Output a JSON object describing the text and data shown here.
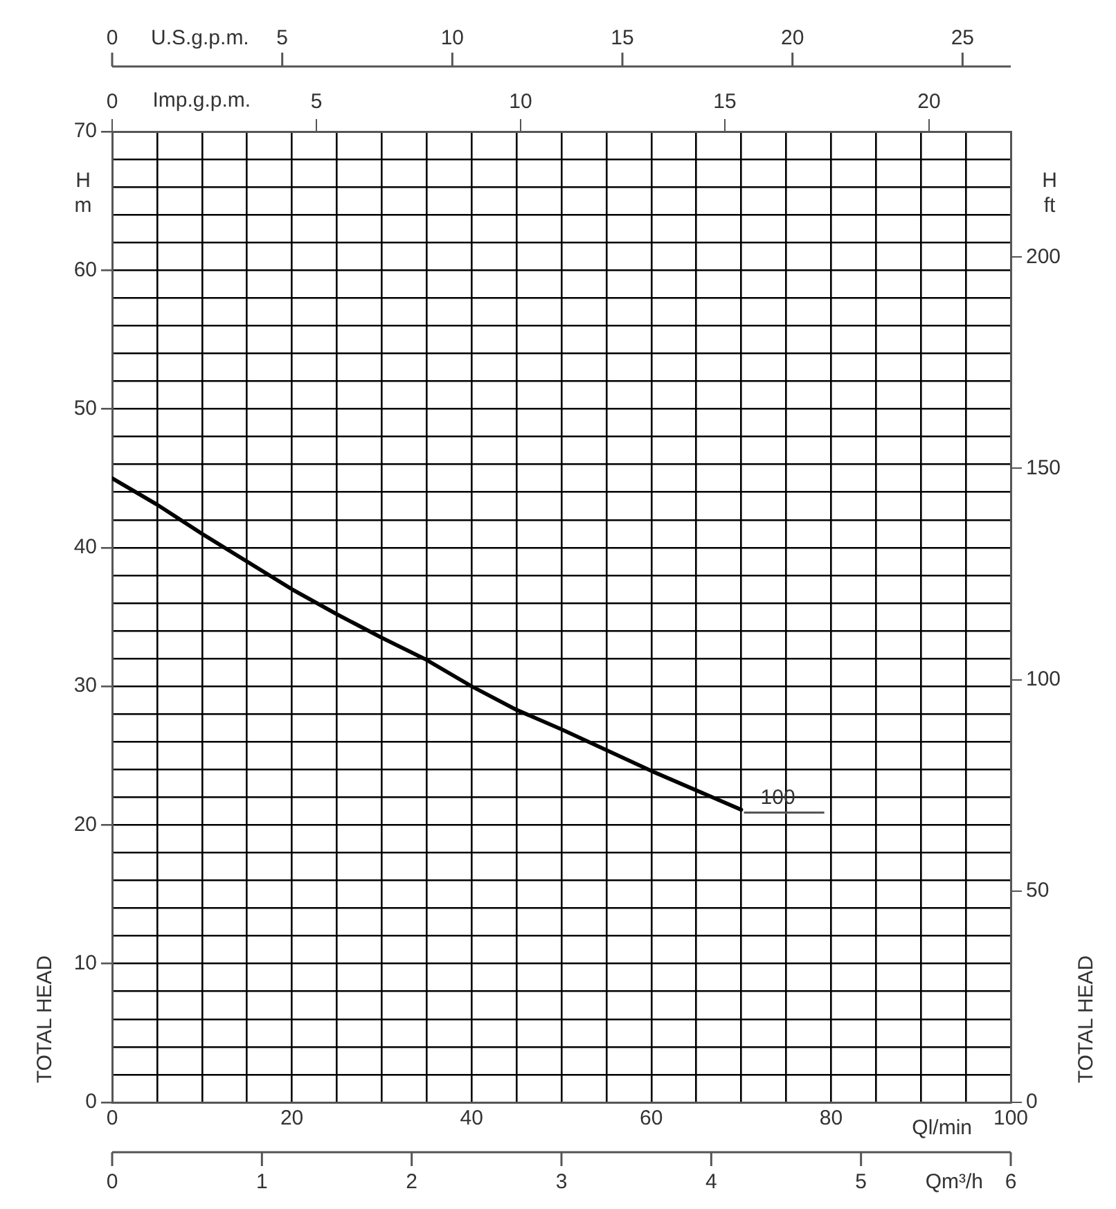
{
  "chart_data": {
    "type": "line",
    "xlabel": "Ql/min",
    "x2label": "Imp.g.p.m.",
    "ylabel": "TOTAL HEAD",
    "y2label": "TOTAL HEAD",
    "x": [
      0,
      5,
      10,
      15,
      20,
      25,
      30,
      35,
      40,
      45,
      50,
      55,
      60,
      65,
      70
    ],
    "series": [
      {
        "color": "#000000",
        "values": [
          45,
          43.1,
          41,
          39,
          37,
          35.2,
          33.5,
          31.9,
          30,
          28.3,
          26.9,
          25.4,
          23.9,
          22.5,
          21.1
        ]
      }
    ],
    "xlim": [
      0,
      100
    ],
    "xticks": [
      0,
      {
        "value": 5,
        "label": null
      },
      {
        "value": 10,
        "label": null
      },
      {
        "value": 15,
        "label": null
      },
      20,
      {
        "value": 25,
        "label": null
      },
      {
        "value": 30,
        "label": null
      },
      {
        "value": 35,
        "label": null
      },
      40,
      {
        "value": 45,
        "label": null
      },
      {
        "value": 50,
        "label": null
      },
      {
        "value": 55,
        "label": null
      },
      60,
      {
        "value": 65,
        "label": null
      },
      {
        "value": 70,
        "label": null
      },
      {
        "value": 75,
        "label": null
      },
      80,
      {
        "value": 85,
        "label": null
      },
      {
        "value": 90,
        "label": null
      },
      {
        "value": 95,
        "label": null
      },
      100
    ],
    "x2lim": [
      0,
      22
    ],
    "x2ticks": [
      0,
      5,
      10,
      15,
      20
    ],
    "ylim": [
      0,
      70
    ],
    "yticks": [
      0,
      {
        "value": 2,
        "label": null
      },
      {
        "value": 4,
        "label": null
      },
      {
        "value": 6,
        "label": null
      },
      {
        "value": 8,
        "label": null
      },
      10,
      {
        "value": 12,
        "label": null
      },
      {
        "value": 14,
        "label": null
      },
      {
        "value": 16,
        "label": null
      },
      {
        "value": 18,
        "label": null
      },
      20,
      {
        "value": 22,
        "label": null
      },
      {
        "value": 24,
        "label": null
      },
      {
        "value": 26,
        "label": null
      },
      {
        "value": 28,
        "label": null
      },
      30,
      {
        "value": 32,
        "label": null
      },
      {
        "value": 34,
        "label": null
      },
      {
        "value": 36,
        "label": null
      },
      {
        "value": 38,
        "label": null
      },
      40,
      {
        "value": 42,
        "label": null
      },
      {
        "value": 44,
        "label": null
      },
      {
        "value": 46,
        "label": null
      },
      {
        "value": 48,
        "label": null
      },
      50,
      {
        "value": 52,
        "label": null
      },
      {
        "value": 54,
        "label": null
      },
      {
        "value": 56,
        "label": null
      },
      {
        "value": 58,
        "label": null
      },
      60,
      {
        "value": 62,
        "label": null
      },
      {
        "value": 64,
        "label": null
      },
      {
        "value": 66,
        "label": null
      },
      {
        "value": 68,
        "label": null
      },
      70
    ],
    "y2lim": [
      0,
      229.7
    ],
    "y2ticks": [
      0,
      50,
      100,
      150,
      200
    ],
    "grid": true,
    "marker": "none",
    "annotations": [
      "100",
      "H",
      "m",
      "H",
      "ft",
      "U.S.g.p.m.",
      "0",
      "5",
      "10",
      "15",
      "20",
      "25",
      "Qm³/h",
      "0",
      "1",
      "2",
      "3",
      "4",
      "5",
      "6"
    ]
  }
}
